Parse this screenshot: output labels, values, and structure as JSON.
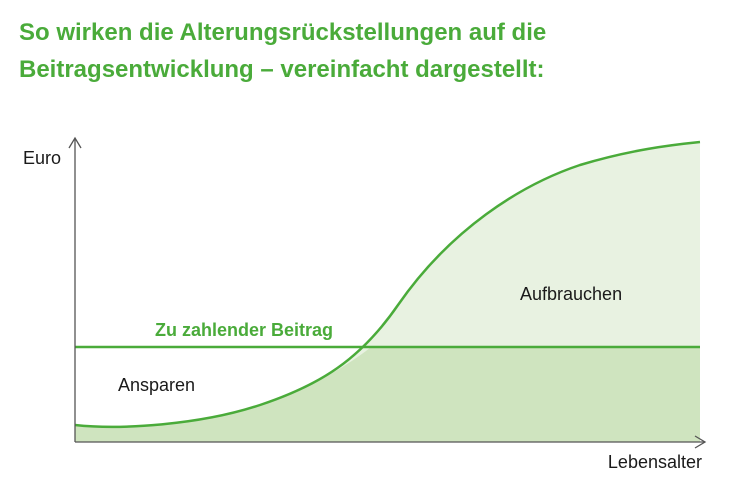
{
  "title": {
    "line1": "So wirken die Alterungsrückstellungen auf die",
    "line2": "Beitragsentwicklung – vereinfacht dargestellt:"
  },
  "diagram": {
    "y_axis_label": "Euro",
    "x_axis_label": "Lebensalter",
    "premium_line_label": "Zu zahlender Beitrag",
    "area_left_label": "Ansparen",
    "area_right_label": "Aufbrauchen"
  },
  "colors": {
    "title": "#4aab3a",
    "curve": "#4aab3a",
    "fill_light": "#e8f2e1",
    "fill_dark": "#cfe4bf",
    "axis": "#555555"
  }
}
